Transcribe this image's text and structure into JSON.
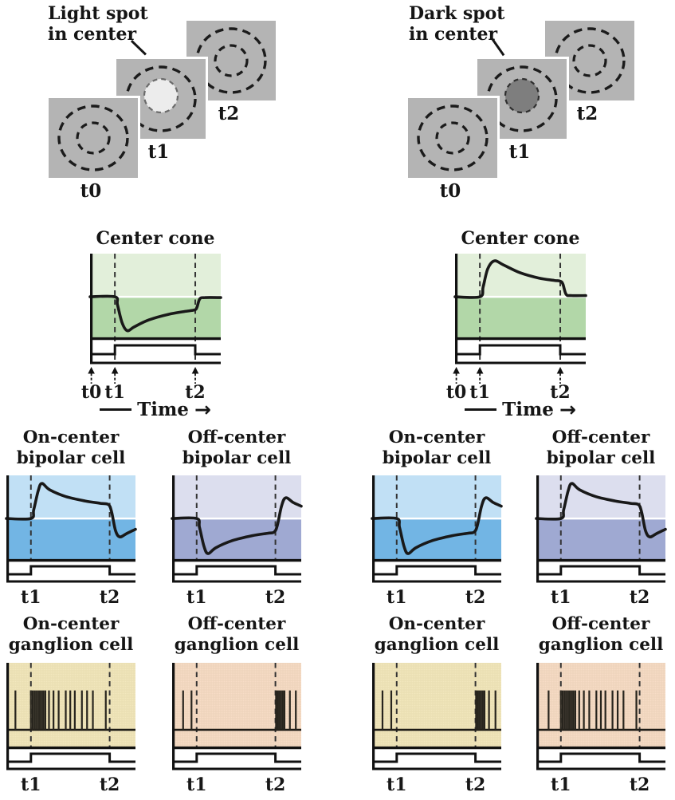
{
  "stimulus": {
    "left": {
      "label": "Light spot\nin center",
      "spot_type": "light",
      "frames": [
        "t0",
        "t1",
        "t2"
      ]
    },
    "right": {
      "label": "Dark spot\nin center",
      "spot_type": "dark",
      "frames": [
        "t0",
        "t1",
        "t2"
      ]
    }
  },
  "time_axis": {
    "label": "Time",
    "arrow_glyph": "→"
  },
  "colors": {
    "square_gray": "#b4b4b4",
    "light_spot": "#ececec",
    "dark_spot": "#7e7e7e",
    "cone_upper": "#e2efda",
    "cone_lower": "#b2d7a8",
    "bipolar_on_upper": "#c1e0f5",
    "bipolar_on_lower": "#72b5e4",
    "bipolar_off_upper": "#dcdeee",
    "bipolar_off_lower": "#9fa9d2",
    "ganglion_on_bg": "#f2e7bd",
    "ganglion_off_bg": "#f7dcc6",
    "trace": "#191919"
  },
  "chart_data": [
    {
      "id": "cone-light",
      "group": "light-spot",
      "type": "line",
      "title": "Center cone",
      "x_tick_labels": [
        "t0",
        "t1",
        "t2"
      ],
      "t1": 0.19,
      "t2": 0.805,
      "baseline": 0.515,
      "stimulus_step": {
        "on": 0.19,
        "off": 0.805
      },
      "response": "hyperpolarizes at t1, slow recovery, returns to rest at t2",
      "colors": {
        "upper": "#e2efda",
        "lower": "#b2d7a8"
      },
      "trace": [
        [
          0,
          0
        ],
        [
          0.19,
          0
        ],
        [
          0.21,
          -0.2
        ],
        [
          0.245,
          -0.65
        ],
        [
          0.285,
          -0.85
        ],
        [
          0.34,
          -0.75
        ],
        [
          0.45,
          -0.58
        ],
        [
          0.6,
          -0.44
        ],
        [
          0.72,
          -0.37
        ],
        [
          0.8,
          -0.33
        ],
        [
          0.818,
          -0.26
        ],
        [
          0.84,
          -0.05
        ],
        [
          0.88,
          -0.02
        ],
        [
          1,
          -0.02
        ]
      ]
    },
    {
      "id": "cone-dark",
      "group": "dark-spot",
      "type": "line",
      "title": "Center cone",
      "x_tick_labels": [
        "t0",
        "t1",
        "t2"
      ],
      "t1": 0.19,
      "t2": 0.805,
      "baseline": 0.515,
      "stimulus_step": {
        "on": 0.19,
        "off": 0.805
      },
      "response": "depolarizes at t1, slow decay, returns to rest at t2",
      "colors": {
        "upper": "#e2efda",
        "lower": "#b2d7a8"
      },
      "trace": [
        [
          0,
          0
        ],
        [
          0.19,
          0
        ],
        [
          0.215,
          0.25
        ],
        [
          0.25,
          0.7
        ],
        [
          0.3,
          0.9
        ],
        [
          0.37,
          0.8
        ],
        [
          0.5,
          0.6
        ],
        [
          0.64,
          0.47
        ],
        [
          0.76,
          0.41
        ],
        [
          0.805,
          0.39
        ],
        [
          0.825,
          0.32
        ],
        [
          0.85,
          0.06
        ],
        [
          0.89,
          0.03
        ],
        [
          1,
          0.03
        ]
      ]
    },
    {
      "id": "bipolar-on-light",
      "group": "light-spot",
      "type": "line",
      "title": "On-center\nbipolar cell",
      "x_tick_labels": [
        "t1",
        "t2"
      ],
      "t1": 0.19,
      "t2": 0.8,
      "baseline": 0.515,
      "stimulus_step": {
        "on": 0.19,
        "off": 0.8
      },
      "response": "depolarizes at t1, decays, undershoots after t2",
      "colors": {
        "upper": "#c1e0f5",
        "lower": "#72b5e4"
      },
      "trace": [
        [
          0,
          0
        ],
        [
          0.19,
          0
        ],
        [
          0.212,
          0.22
        ],
        [
          0.247,
          0.7
        ],
        [
          0.275,
          0.88
        ],
        [
          0.335,
          0.72
        ],
        [
          0.46,
          0.55
        ],
        [
          0.61,
          0.44
        ],
        [
          0.73,
          0.38
        ],
        [
          0.79,
          0.35
        ],
        [
          0.815,
          0.17
        ],
        [
          0.845,
          -0.3
        ],
        [
          0.878,
          -0.46
        ],
        [
          0.935,
          -0.37
        ],
        [
          1,
          -0.27
        ]
      ]
    },
    {
      "id": "bipolar-off-light",
      "group": "light-spot",
      "type": "line",
      "title": "Off-center\nbipolar cell",
      "x_tick_labels": [
        "t1",
        "t2"
      ],
      "t1": 0.19,
      "t2": 0.8,
      "baseline": 0.515,
      "stimulus_step": {
        "on": 0.19,
        "off": 0.8
      },
      "response": "hyperpolarizes at t1, recovers, overshoots after t2",
      "colors": {
        "upper": "#dcdeee",
        "lower": "#9fa9d2"
      },
      "trace": [
        [
          0,
          0
        ],
        [
          0.19,
          0
        ],
        [
          0.212,
          -0.22
        ],
        [
          0.247,
          -0.7
        ],
        [
          0.278,
          -0.88
        ],
        [
          0.34,
          -0.73
        ],
        [
          0.47,
          -0.55
        ],
        [
          0.62,
          -0.43
        ],
        [
          0.74,
          -0.37
        ],
        [
          0.79,
          -0.34
        ],
        [
          0.815,
          -0.17
        ],
        [
          0.848,
          0.32
        ],
        [
          0.88,
          0.52
        ],
        [
          0.938,
          0.4
        ],
        [
          1,
          0.31
        ]
      ]
    },
    {
      "id": "bipolar-on-dark",
      "group": "dark-spot",
      "type": "line",
      "title": "On-center\nbipolar cell",
      "x_tick_labels": [
        "t1",
        "t2"
      ],
      "t1": 0.19,
      "t2": 0.8,
      "baseline": 0.515,
      "stimulus_step": {
        "on": 0.19,
        "off": 0.8
      },
      "response": "hyperpolarizes at t1, recovers, overshoots after t2",
      "colors": {
        "upper": "#c1e0f5",
        "lower": "#72b5e4"
      },
      "trace": [
        [
          0,
          0
        ],
        [
          0.19,
          0
        ],
        [
          0.212,
          -0.22
        ],
        [
          0.247,
          -0.7
        ],
        [
          0.278,
          -0.88
        ],
        [
          0.34,
          -0.73
        ],
        [
          0.47,
          -0.55
        ],
        [
          0.62,
          -0.43
        ],
        [
          0.74,
          -0.37
        ],
        [
          0.79,
          -0.34
        ],
        [
          0.815,
          -0.17
        ],
        [
          0.848,
          0.32
        ],
        [
          0.88,
          0.52
        ],
        [
          0.938,
          0.4
        ],
        [
          1,
          0.31
        ]
      ]
    },
    {
      "id": "bipolar-off-dark",
      "group": "dark-spot",
      "type": "line",
      "title": "Off-center\nbipolar cell",
      "x_tick_labels": [
        "t1",
        "t2"
      ],
      "t1": 0.19,
      "t2": 0.8,
      "baseline": 0.515,
      "stimulus_step": {
        "on": 0.19,
        "off": 0.8
      },
      "response": "depolarizes at t1, decays, undershoots after t2",
      "colors": {
        "upper": "#dcdeee",
        "lower": "#9fa9d2"
      },
      "trace": [
        [
          0,
          0
        ],
        [
          0.19,
          0
        ],
        [
          0.212,
          0.22
        ],
        [
          0.247,
          0.7
        ],
        [
          0.275,
          0.88
        ],
        [
          0.335,
          0.72
        ],
        [
          0.46,
          0.55
        ],
        [
          0.61,
          0.44
        ],
        [
          0.73,
          0.38
        ],
        [
          0.79,
          0.35
        ],
        [
          0.815,
          0.17
        ],
        [
          0.845,
          -0.3
        ],
        [
          0.878,
          -0.46
        ],
        [
          0.935,
          -0.37
        ],
        [
          1,
          -0.27
        ]
      ]
    },
    {
      "id": "ganglion-on-light",
      "group": "light-spot",
      "type": "spikes",
      "title": "On-center\nganglion cell",
      "x_tick_labels": [
        "t1",
        "t2"
      ],
      "t1": 0.19,
      "t2": 0.8,
      "baseline": 0.8,
      "spike_top": 0.33,
      "stimulus_step": {
        "on": 0.19,
        "off": 0.8
      },
      "response": "burst of firing during t1–t2",
      "colors": {
        "bg": "#f2e7bd"
      },
      "spike_times": [
        0.07,
        0.19,
        0.204,
        0.218,
        0.232,
        0.246,
        0.26,
        0.274,
        0.288,
        0.302,
        0.33,
        0.365,
        0.405,
        0.46,
        0.495,
        0.53,
        0.585,
        0.625,
        0.67,
        0.77
      ]
    },
    {
      "id": "ganglion-off-light",
      "group": "light-spot",
      "type": "spikes",
      "title": "Off-center\nganglion cell",
      "x_tick_labels": [
        "t1",
        "t2"
      ],
      "t1": 0.19,
      "t2": 0.8,
      "baseline": 0.8,
      "spike_top": 0.33,
      "stimulus_step": {
        "on": 0.19,
        "off": 0.8
      },
      "response": "silent during t1–t2, burst after t2",
      "colors": {
        "bg": "#f7dcc6"
      },
      "spike_times": [
        0.085,
        0.15,
        0.805,
        0.818,
        0.831,
        0.844,
        0.857,
        0.87,
        0.912,
        0.958
      ]
    },
    {
      "id": "ganglion-on-dark",
      "group": "dark-spot",
      "type": "spikes",
      "title": "On-center\nganglion cell",
      "x_tick_labels": [
        "t1",
        "t2"
      ],
      "t1": 0.19,
      "t2": 0.8,
      "baseline": 0.8,
      "spike_top": 0.33,
      "stimulus_step": {
        "on": 0.19,
        "off": 0.8
      },
      "response": "silent during t1–t2, burst after t2",
      "colors": {
        "bg": "#f2e7bd"
      },
      "spike_times": [
        0.08,
        0.148,
        0.805,
        0.818,
        0.831,
        0.844,
        0.857,
        0.87,
        0.905,
        0.955
      ]
    },
    {
      "id": "ganglion-off-dark",
      "group": "dark-spot",
      "type": "spikes",
      "title": "Off-center\nganglion cell",
      "x_tick_labels": [
        "t1",
        "t2"
      ],
      "t1": 0.19,
      "t2": 0.8,
      "baseline": 0.8,
      "spike_top": 0.33,
      "stimulus_step": {
        "on": 0.19,
        "off": 0.8
      },
      "response": "burst of firing during t1–t2",
      "colors": {
        "bg": "#f7dcc6"
      },
      "spike_times": [
        0.095,
        0.19,
        0.204,
        0.218,
        0.232,
        0.246,
        0.26,
        0.274,
        0.288,
        0.302,
        0.332,
        0.368,
        0.41,
        0.465,
        0.5,
        0.535,
        0.59,
        0.63,
        0.675,
        0.775
      ]
    }
  ]
}
